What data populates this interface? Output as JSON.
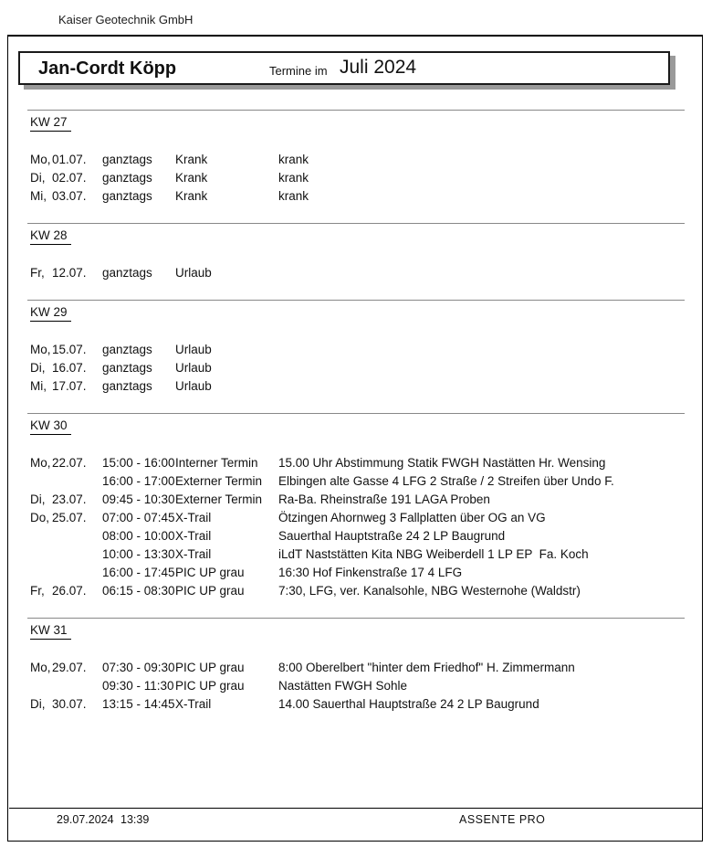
{
  "page": {
    "company": "Kaiser Geotechnik GmbH",
    "person": "Jan-Cordt Köpp",
    "title_prefix": "Termine im",
    "title_month": "Juli 2024",
    "footer": {
      "date": "29.07.2024",
      "time": "13:39",
      "app": "ASSENTE PRO"
    }
  },
  "colors": {
    "sick": "#FFFF66",
    "vacation": "#EE0000",
    "internal": "#A8A55C",
    "external": "#5A8CEC",
    "xtrail": "#0B8A0B",
    "picup": "#8F8F8F"
  },
  "sections": [
    {
      "week": "KW 27",
      "rows": [
        {
          "dow": "Mo,",
          "date": "01.07.",
          "color": "sick",
          "time": "ganztags",
          "type": "Krank",
          "desc": "krank"
        },
        {
          "dow": "Di,",
          "date": "02.07.",
          "color": "sick",
          "time": "ganztags",
          "type": "Krank",
          "desc": "krank"
        },
        {
          "dow": "Mi,",
          "date": "03.07.",
          "color": "sick",
          "time": "ganztags",
          "type": "Krank",
          "desc": "krank"
        }
      ]
    },
    {
      "week": "KW 28",
      "rows": [
        {
          "dow": "Fr,",
          "date": "12.07.",
          "color": "vacation",
          "time": "ganztags",
          "type": "Urlaub",
          "desc": ""
        }
      ]
    },
    {
      "week": "KW 29",
      "rows": [
        {
          "dow": "Mo,",
          "date": "15.07.",
          "color": "vacation",
          "time": "ganztags",
          "type": "Urlaub",
          "desc": ""
        },
        {
          "dow": "Di,",
          "date": "16.07.",
          "color": "vacation",
          "time": "ganztags",
          "type": "Urlaub",
          "desc": ""
        },
        {
          "dow": "Mi,",
          "date": "17.07.",
          "color": "vacation",
          "time": "ganztags",
          "type": "Urlaub",
          "desc": ""
        }
      ]
    },
    {
      "week": "KW 30",
      "rows": [
        {
          "dow": "Mo,",
          "date": "22.07.",
          "color": "internal",
          "time": "15:00 - 16:00",
          "type": "Interner Termin",
          "desc": "15.00 Uhr Abstimmung Statik FWGH Nastätten Hr. Wensing"
        },
        {
          "dow": "",
          "date": "",
          "color": "external",
          "time": "16:00 - 17:00",
          "type": "Externer Termin",
          "desc": "Elbingen alte Gasse 4 LFG 2 Straße / 2 Streifen über Undo F."
        },
        {
          "dow": "Di,",
          "date": "23.07.",
          "color": "external",
          "time": "09:45 - 10:30",
          "type": "Externer Termin",
          "desc": "Ra-Ba. Rheinstraße 191 LAGA Proben"
        },
        {
          "dow": "Do,",
          "date": "25.07.",
          "color": "xtrail",
          "time": "07:00 - 07:45",
          "type": "X-Trail",
          "desc": "Ötzingen Ahornweg 3 Fallplatten über OG an VG"
        },
        {
          "dow": "",
          "date": "",
          "color": "xtrail",
          "time": "08:00 - 10:00",
          "type": "X-Trail",
          "desc": "Sauerthal Hauptstraße 24 2 LP Baugrund"
        },
        {
          "dow": "",
          "date": "",
          "color": "xtrail",
          "time": "10:00 - 13:30",
          "type": "X-Trail",
          "desc": "iLdT Naststätten Kita NBG Weiberdell 1 LP EP  Fa. Koch"
        },
        {
          "dow": "",
          "date": "",
          "color": "picup",
          "time": "16:00 - 17:45",
          "type": "PIC UP grau",
          "desc": "16:30 Hof Finkenstraße 17 4 LFG"
        },
        {
          "dow": "Fr,",
          "date": "26.07.",
          "color": "picup",
          "time": "06:15 - 08:30",
          "type": "PIC UP grau",
          "desc": "7:30, LFG, ver. Kanalsohle, NBG Westernohe (Waldstr)"
        }
      ]
    },
    {
      "week": "KW 31",
      "rows": [
        {
          "dow": "Mo,",
          "date": "29.07.",
          "color": "picup",
          "time": "07:30 - 09:30",
          "type": "PIC UP grau",
          "desc": "8:00 Oberelbert \"hinter dem Friedhof\" H. Zimmermann"
        },
        {
          "dow": "",
          "date": "",
          "color": "picup",
          "time": "09:30 - 11:30",
          "type": "PIC UP grau",
          "desc": "Nastätten FWGH Sohle"
        },
        {
          "dow": "Di,",
          "date": "30.07.",
          "color": "xtrail",
          "time": "13:15 - 14:45",
          "type": "X-Trail",
          "desc": "14.00 Sauerthal Hauptstraße 24 2 LP Baugrund"
        }
      ]
    }
  ]
}
